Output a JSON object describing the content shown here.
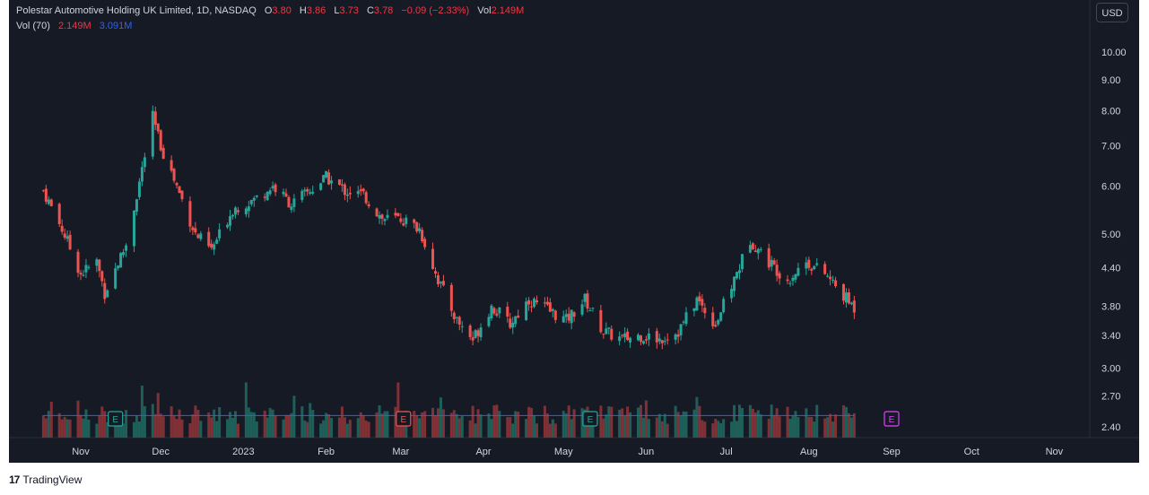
{
  "legend": {
    "symbol": "Polestar Automotive Holding UK Limited, 1D, NASDAQ",
    "o_label": "O",
    "o_value": "3.80",
    "h_label": "H",
    "h_value": "3.86",
    "l_label": "L",
    "l_value": "3.73",
    "c_label": "C",
    "c_value": "3.78",
    "change": "−0.09 (−2.33%)",
    "vol_label": "Vol",
    "vol_value": "2.149M",
    "vol_ma_label": "Vol (70)",
    "vol_ma_value1": "2.149M",
    "vol_ma_value2": "3.091M"
  },
  "currency": "USD",
  "footer": {
    "logo": "17",
    "brand": "TradingView"
  },
  "colors": {
    "up": "#26a69a",
    "down": "#ef5350",
    "vol_up": "#1e5f59",
    "vol_down": "#7f3136",
    "ma": "#2962ff",
    "bg": "#161a25",
    "text": "#d1d4dc",
    "event_next": "#e040fb"
  },
  "chart_data": {
    "type": "candlestick",
    "scale": "log",
    "price_ticks": [
      "10.00",
      "9.00",
      "8.00",
      "7.00",
      "6.00",
      "5.00",
      "4.40",
      "3.80",
      "3.40",
      "3.00",
      "2.70",
      "2.40"
    ],
    "time_labels": [
      "Nov",
      "Dec",
      "2023",
      "Feb",
      "Mar",
      "Apr",
      "May",
      "Jun",
      "Jul",
      "Aug",
      "Sep",
      "Oct",
      "Nov"
    ],
    "earnings_events": [
      {
        "label": "E",
        "date": "2022-11-14",
        "type": "past_up"
      },
      {
        "label": "E",
        "date": "2023-03-02",
        "type": "past_down"
      },
      {
        "label": "E",
        "date": "2023-05-11",
        "type": "past_up"
      },
      {
        "label": "E",
        "date": "2023-09-01",
        "type": "upcoming"
      }
    ],
    "price_series": [
      {
        "date": "2022-10-18",
        "close": 5.9
      },
      {
        "date": "2022-10-25",
        "close": 5.1
      },
      {
        "date": "2022-11-01",
        "close": 4.3
      },
      {
        "date": "2022-11-07",
        "close": 4.5
      },
      {
        "date": "2022-11-10",
        "close": 4.0
      },
      {
        "date": "2022-11-18",
        "close": 4.8
      },
      {
        "date": "2022-11-22",
        "close": 5.8
      },
      {
        "date": "2022-11-28",
        "close": 7.8
      },
      {
        "date": "2022-12-01",
        "close": 7.0
      },
      {
        "date": "2022-12-07",
        "close": 6.0
      },
      {
        "date": "2022-12-14",
        "close": 5.0
      },
      {
        "date": "2022-12-20",
        "close": 4.7
      },
      {
        "date": "2022-12-28",
        "close": 5.5
      },
      {
        "date": "2023-01-05",
        "close": 5.7
      },
      {
        "date": "2023-01-12",
        "close": 6.0
      },
      {
        "date": "2023-01-19",
        "close": 5.6
      },
      {
        "date": "2023-01-26",
        "close": 5.9
      },
      {
        "date": "2023-02-01",
        "close": 6.2
      },
      {
        "date": "2023-02-08",
        "close": 5.9
      },
      {
        "date": "2023-02-15",
        "close": 5.8
      },
      {
        "date": "2023-02-22",
        "close": 5.3
      },
      {
        "date": "2023-03-01",
        "close": 5.3
      },
      {
        "date": "2023-03-08",
        "close": 5.1
      },
      {
        "date": "2023-03-15",
        "close": 4.2
      },
      {
        "date": "2023-03-22",
        "close": 3.6
      },
      {
        "date": "2023-03-28",
        "close": 3.35
      },
      {
        "date": "2023-04-04",
        "close": 3.8
      },
      {
        "date": "2023-04-11",
        "close": 3.55
      },
      {
        "date": "2023-04-18",
        "close": 3.9
      },
      {
        "date": "2023-04-25",
        "close": 3.75
      },
      {
        "date": "2023-05-02",
        "close": 3.6
      },
      {
        "date": "2023-05-09",
        "close": 3.9
      },
      {
        "date": "2023-05-16",
        "close": 3.45
      },
      {
        "date": "2023-05-23",
        "close": 3.35
      },
      {
        "date": "2023-05-30",
        "close": 3.4
      },
      {
        "date": "2023-06-06",
        "close": 3.35
      },
      {
        "date": "2023-06-13",
        "close": 3.45
      },
      {
        "date": "2023-06-20",
        "close": 3.9
      },
      {
        "date": "2023-06-27",
        "close": 3.55
      },
      {
        "date": "2023-07-03",
        "close": 4.1
      },
      {
        "date": "2023-07-10",
        "close": 4.9
      },
      {
        "date": "2023-07-17",
        "close": 4.5
      },
      {
        "date": "2023-07-24",
        "close": 4.2
      },
      {
        "date": "2023-07-31",
        "close": 4.5
      },
      {
        "date": "2023-08-07",
        "close": 4.3
      },
      {
        "date": "2023-08-14",
        "close": 3.95
      },
      {
        "date": "2023-08-18",
        "close": 3.78
      }
    ]
  }
}
